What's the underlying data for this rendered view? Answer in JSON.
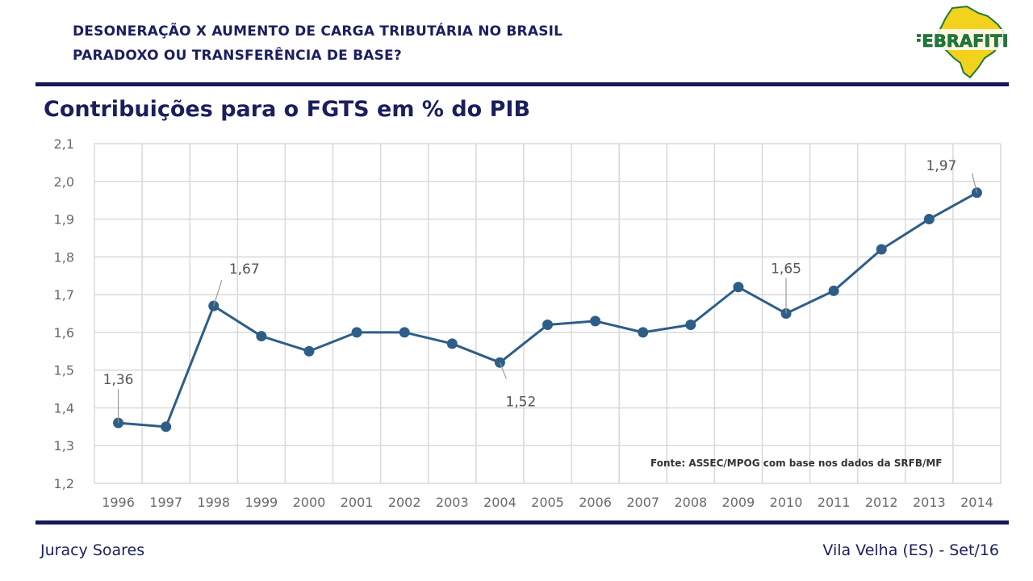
{
  "header": {
    "line1": "DESONERAÇÃO X AUMENTO DE CARGA TRIBUTÁRIA NO BRASIL",
    "line2": "PARADOXO OU TRANSFERÊNCIA DE BASE?",
    "logo_text": "FEBRAFITE"
  },
  "slide_title": "Contribuições para o FGTS em % do PIB",
  "colors": {
    "series": "#2e5e88",
    "navy": "#1b1f5e",
    "grid": "#d9d9d9",
    "logo_green": "#1f7a3c",
    "logo_yellow": "#f2d21c"
  },
  "chart_data": {
    "type": "line",
    "title": "",
    "xlabel": "",
    "ylabel": "",
    "categories": [
      "1996",
      "1997",
      "1998",
      "1999",
      "2000",
      "2001",
      "2002",
      "2003",
      "2004",
      "2005",
      "2006",
      "2007",
      "2008",
      "2009",
      "2010",
      "2011",
      "2012",
      "2013",
      "2014"
    ],
    "series": [
      {
        "values": [
          1.36,
          1.35,
          1.67,
          1.59,
          1.55,
          1.6,
          1.6,
          1.57,
          1.52,
          1.62,
          1.63,
          1.6,
          1.62,
          1.72,
          1.65,
          1.71,
          1.82,
          1.9,
          1.97
        ]
      }
    ],
    "ylim": [
      1.2,
      2.1
    ],
    "yticks": [
      "1,2",
      "1,3",
      "1,4",
      "1,5",
      "1,6",
      "1,7",
      "1,8",
      "1,9",
      "2,0",
      "2,1"
    ],
    "grid": true,
    "annotations": [
      {
        "index": 0,
        "text": "1,36"
      },
      {
        "index": 2,
        "text": "1,67"
      },
      {
        "index": 8,
        "text": "1,52"
      },
      {
        "index": 14,
        "text": "1,65"
      },
      {
        "index": 18,
        "text": "1,97"
      }
    ],
    "source_note": "Fonte: ASSEC/MPOG com base nos dados da SRFB/MF"
  },
  "footer": {
    "left": "Juracy Soares",
    "right": "Vila Velha (ES) - Set/16"
  }
}
